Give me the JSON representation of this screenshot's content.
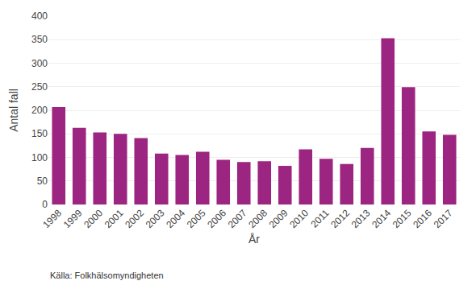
{
  "chart_data": {
    "type": "bar",
    "categories": [
      "1998",
      "1999",
      "2000",
      "2001",
      "2002",
      "2003",
      "2004",
      "2005",
      "2006",
      "2007",
      "2008",
      "2009",
      "2010",
      "2011",
      "2012",
      "2013",
      "2014",
      "2015",
      "2016",
      "2017"
    ],
    "values": [
      207,
      163,
      153,
      150,
      141,
      108,
      105,
      112,
      95,
      90,
      92,
      82,
      117,
      97,
      86,
      120,
      353,
      249,
      155,
      148
    ],
    "color": "#9b2580",
    "xlabel": "År",
    "ylabel": "Antal fall",
    "annotations": [
      "Källa: Folkhälsomyndigheten"
    ],
    "ylim": [
      0,
      400
    ],
    "yticks": [
      0,
      50,
      100,
      150,
      200,
      250,
      300,
      350,
      400
    ],
    "grid": true
  }
}
